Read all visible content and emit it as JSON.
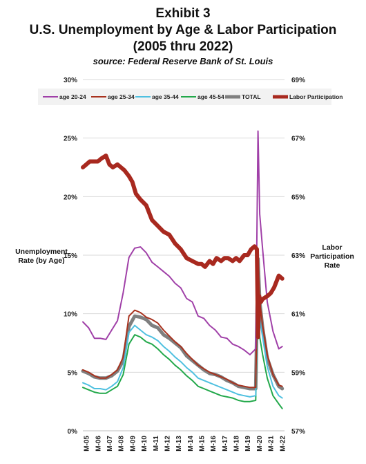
{
  "header": {
    "line1": "Exhibit 3",
    "line2": "U.S. Unemployment by Age & Labor Participation",
    "line3": "(2005 thru 2022)",
    "source": "source: Federal Reserve Bank of St. Louis"
  },
  "chart_data": {
    "type": "line",
    "ylabel_left": "Unemployment Rate (by Age)",
    "ylabel_right": "Labor Participation Rate",
    "ylim_left": [
      0,
      30
    ],
    "ylim_right": [
      57,
      69
    ],
    "ticks_left": [
      "0%",
      "5%",
      "10%",
      "15%",
      "20%",
      "25%",
      "30%"
    ],
    "ticks_right": [
      "57%",
      "59%",
      "61%",
      "63%",
      "65%",
      "67%",
      "69%"
    ],
    "categories": [
      "M-05",
      "M-06",
      "M-07",
      "M-08",
      "M-09",
      "M-10",
      "M-11",
      "M-12",
      "M-13",
      "M-14",
      "M-15",
      "M-16",
      "M-17",
      "M-18",
      "M-19",
      "M-20",
      "M-21",
      "M-22"
    ],
    "legend_position": "top",
    "grid": "horizontal",
    "series": [
      {
        "name": "age 20-24",
        "axis": "left",
        "color": "#a040a8",
        "width": 2,
        "x": [
          2005.0,
          2005.5,
          2006.0,
          2006.5,
          2007.0,
          2007.5,
          2008.0,
          2008.5,
          2009.0,
          2009.5,
          2010.0,
          2010.5,
          2011.0,
          2011.5,
          2012.0,
          2012.5,
          2013.0,
          2013.5,
          2014.0,
          2014.5,
          2015.0,
          2015.5,
          2016.0,
          2016.5,
          2017.0,
          2017.5,
          2018.0,
          2018.5,
          2019.0,
          2019.5,
          2020.0,
          2020.2,
          2020.35,
          2020.6,
          2021.0,
          2021.5,
          2022.0,
          2022.3
        ],
        "values": [
          9.3,
          8.8,
          7.9,
          7.9,
          7.8,
          8.6,
          9.4,
          11.8,
          14.8,
          15.6,
          15.7,
          15.2,
          14.4,
          14.0,
          13.6,
          13.2,
          12.6,
          12.2,
          11.3,
          11.0,
          9.8,
          9.6,
          9.0,
          8.6,
          8.0,
          7.9,
          7.4,
          7.2,
          6.9,
          6.5,
          7.0,
          25.6,
          18.5,
          15.5,
          11.0,
          8.5,
          7.0,
          7.2
        ]
      },
      {
        "name": "age 25-34",
        "axis": "left",
        "color": "#a8321e",
        "width": 2,
        "x": [
          2005.0,
          2005.5,
          2006.0,
          2006.5,
          2007.0,
          2007.5,
          2008.0,
          2008.5,
          2009.0,
          2009.5,
          2010.0,
          2010.5,
          2011.0,
          2011.5,
          2012.0,
          2012.5,
          2013.0,
          2013.5,
          2014.0,
          2014.5,
          2015.0,
          2015.5,
          2016.0,
          2016.5,
          2017.0,
          2017.5,
          2018.0,
          2018.5,
          2019.0,
          2019.5,
          2020.0,
          2020.2,
          2020.35,
          2020.6,
          2021.0,
          2021.5,
          2022.0,
          2022.3
        ],
        "values": [
          5.2,
          5.0,
          4.7,
          4.5,
          4.5,
          4.8,
          5.2,
          6.3,
          9.8,
          10.3,
          10.1,
          9.7,
          9.5,
          9.2,
          8.6,
          8.1,
          7.6,
          7.2,
          6.6,
          6.1,
          5.6,
          5.3,
          5.0,
          4.8,
          4.6,
          4.4,
          4.1,
          3.9,
          3.8,
          3.7,
          3.7,
          14.5,
          11.0,
          9.0,
          6.5,
          4.8,
          3.9,
          3.8
        ]
      },
      {
        "name": "age 35-44",
        "axis": "left",
        "color": "#4ec0e0",
        "width": 2,
        "x": [
          2005.0,
          2005.5,
          2006.0,
          2006.5,
          2007.0,
          2007.5,
          2008.0,
          2008.5,
          2009.0,
          2009.5,
          2010.0,
          2010.5,
          2011.0,
          2011.5,
          2012.0,
          2012.5,
          2013.0,
          2013.5,
          2014.0,
          2014.5,
          2015.0,
          2015.5,
          2016.0,
          2016.5,
          2017.0,
          2017.5,
          2018.0,
          2018.5,
          2019.0,
          2019.5,
          2020.0,
          2020.2,
          2020.35,
          2020.6,
          2021.0,
          2021.5,
          2022.0,
          2022.3
        ],
        "values": [
          4.1,
          3.9,
          3.6,
          3.6,
          3.5,
          3.8,
          4.2,
          5.4,
          8.4,
          9.0,
          8.6,
          8.2,
          8.0,
          7.7,
          7.2,
          6.8,
          6.3,
          5.9,
          5.4,
          5.0,
          4.5,
          4.3,
          4.1,
          3.9,
          3.7,
          3.5,
          3.3,
          3.1,
          3.0,
          2.9,
          3.0,
          12.8,
          9.5,
          8.0,
          5.5,
          3.8,
          3.0,
          2.8
        ]
      },
      {
        "name": "age 45-54",
        "axis": "left",
        "color": "#22a84a",
        "width": 2,
        "x": [
          2005.0,
          2005.5,
          2006.0,
          2006.5,
          2007.0,
          2007.5,
          2008.0,
          2008.5,
          2009.0,
          2009.5,
          2010.0,
          2010.5,
          2011.0,
          2011.5,
          2012.0,
          2012.5,
          2013.0,
          2013.5,
          2014.0,
          2014.5,
          2015.0,
          2015.5,
          2016.0,
          2016.5,
          2017.0,
          2017.5,
          2018.0,
          2018.5,
          2019.0,
          2019.5,
          2020.0,
          2020.2,
          2020.35,
          2020.6,
          2021.0,
          2021.5,
          2022.0,
          2022.3
        ],
        "values": [
          3.7,
          3.5,
          3.3,
          3.2,
          3.2,
          3.5,
          3.8,
          4.8,
          7.4,
          8.2,
          8.0,
          7.6,
          7.4,
          7.0,
          6.5,
          6.1,
          5.6,
          5.2,
          4.7,
          4.3,
          3.8,
          3.6,
          3.4,
          3.2,
          3.0,
          2.9,
          2.8,
          2.6,
          2.5,
          2.5,
          2.6,
          12.0,
          8.0,
          6.5,
          4.5,
          3.0,
          2.3,
          1.9
        ]
      },
      {
        "name": "TOTAL",
        "axis": "left",
        "color": "#7f7f7f",
        "width": 5,
        "x": [
          2005.0,
          2005.5,
          2006.0,
          2006.5,
          2007.0,
          2007.5,
          2008.0,
          2008.5,
          2009.0,
          2009.5,
          2010.0,
          2010.5,
          2011.0,
          2011.5,
          2012.0,
          2012.5,
          2013.0,
          2013.5,
          2014.0,
          2014.5,
          2015.0,
          2015.5,
          2016.0,
          2016.5,
          2017.0,
          2017.5,
          2018.0,
          2018.5,
          2019.0,
          2019.5,
          2020.0,
          2020.2,
          2020.35,
          2020.6,
          2021.0,
          2021.5,
          2022.0,
          2022.3
        ],
        "values": [
          5.1,
          4.9,
          4.6,
          4.5,
          4.5,
          4.7,
          5.1,
          6.0,
          8.9,
          9.8,
          9.7,
          9.5,
          9.0,
          8.8,
          8.2,
          7.9,
          7.5,
          7.1,
          6.4,
          6.0,
          5.6,
          5.2,
          4.9,
          4.8,
          4.6,
          4.3,
          4.1,
          3.8,
          3.7,
          3.6,
          3.6,
          14.7,
          11.0,
          8.8,
          6.2,
          4.8,
          3.8,
          3.6
        ]
      },
      {
        "name": "Labor Participation",
        "axis": "right",
        "color": "#a8291f",
        "width": 6,
        "x": [
          2005.0,
          2005.3,
          2005.6,
          2006.0,
          2006.3,
          2006.6,
          2007.0,
          2007.3,
          2007.6,
          2008.0,
          2008.3,
          2008.6,
          2009.0,
          2009.3,
          2009.6,
          2010.0,
          2010.5,
          2011.0,
          2011.5,
          2012.0,
          2012.5,
          2013.0,
          2013.5,
          2014.0,
          2014.5,
          2015.0,
          2015.3,
          2015.6,
          2016.0,
          2016.3,
          2016.6,
          2017.0,
          2017.3,
          2017.6,
          2018.0,
          2018.3,
          2018.6,
          2019.0,
          2019.3,
          2019.6,
          2019.9,
          2020.1,
          2020.2,
          2020.3,
          2020.45,
          2020.6,
          2021.0,
          2021.3,
          2021.6,
          2022.0,
          2022.3
        ],
        "values": [
          66.0,
          66.1,
          66.2,
          66.2,
          66.2,
          66.3,
          66.4,
          66.1,
          66.0,
          66.1,
          66.0,
          65.9,
          65.7,
          65.5,
          65.1,
          64.9,
          64.7,
          64.2,
          64.0,
          63.8,
          63.7,
          63.4,
          63.2,
          62.9,
          62.8,
          62.7,
          62.7,
          62.6,
          62.8,
          62.7,
          62.9,
          62.8,
          62.9,
          62.9,
          62.8,
          62.9,
          62.8,
          63.0,
          63.0,
          63.2,
          63.3,
          63.2,
          60.2,
          61.6,
          61.4,
          61.5,
          61.6,
          61.7,
          61.9,
          62.3,
          62.2
        ]
      }
    ]
  }
}
